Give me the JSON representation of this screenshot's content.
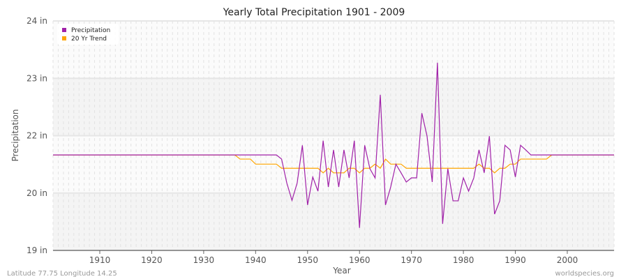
{
  "chart_data": {
    "type": "line",
    "title": "Yearly Total Precipitation 1901 - 2009",
    "xlabel": "Year",
    "ylabel": "Precipitation",
    "xlim": [
      1901,
      2009
    ],
    "ylim": [
      19,
      24
    ],
    "x_ticks": [
      1910,
      1920,
      1930,
      1940,
      1950,
      1960,
      1970,
      1980,
      1990,
      2000
    ],
    "y_ticks": [
      {
        "value": 19,
        "label": "19 in"
      },
      {
        "value": 20.25,
        "label": "20 in"
      },
      {
        "value": 21.5,
        "label": "22 in"
      },
      {
        "value": 22.75,
        "label": "23 in"
      },
      {
        "value": 24,
        "label": "24 in"
      }
    ],
    "grid": true,
    "legend_position": "top-left",
    "series": [
      {
        "name": "Precipitation",
        "color": "#a020a8",
        "start_year": 1901,
        "values": [
          21.08,
          21.08,
          21.08,
          21.08,
          21.08,
          21.08,
          21.08,
          21.08,
          21.08,
          21.08,
          21.08,
          21.08,
          21.08,
          21.08,
          21.08,
          21.08,
          21.08,
          21.08,
          21.08,
          21.08,
          21.08,
          21.08,
          21.08,
          21.08,
          21.08,
          21.08,
          21.08,
          21.08,
          21.08,
          21.08,
          21.08,
          21.08,
          21.08,
          21.08,
          21.08,
          21.08,
          21.08,
          21.08,
          21.08,
          21.08,
          21.08,
          21.08,
          21.08,
          21.08,
          20.99,
          20.47,
          20.09,
          20.47,
          21.29,
          19.99,
          20.6,
          20.29,
          21.39,
          20.38,
          21.19,
          20.38,
          21.19,
          20.58,
          21.39,
          19.49,
          21.29,
          20.78,
          20.58,
          22.39,
          19.99,
          20.38,
          20.88,
          20.69,
          20.49,
          20.58,
          20.58,
          21.99,
          21.49,
          20.49,
          23.09,
          19.58,
          20.78,
          20.08,
          20.08,
          20.58,
          20.29,
          20.58,
          21.19,
          20.69,
          21.49,
          19.79,
          20.08,
          21.29,
          21.19,
          20.6,
          21.29,
          21.19,
          21.08,
          21.08,
          21.08,
          21.08,
          21.08,
          21.08,
          21.08,
          21.08,
          21.08,
          21.08,
          21.08,
          21.08,
          21.08,
          21.08,
          21.08,
          21.08,
          21.08
        ]
      },
      {
        "name": "20 Yr Trend",
        "color": "#ffa500",
        "start_year": 1901,
        "values": [
          21.08,
          21.08,
          21.08,
          21.08,
          21.08,
          21.08,
          21.08,
          21.08,
          21.08,
          21.08,
          21.08,
          21.08,
          21.08,
          21.08,
          21.08,
          21.08,
          21.08,
          21.08,
          21.08,
          21.08,
          21.08,
          21.08,
          21.08,
          21.08,
          21.08,
          21.08,
          21.08,
          21.08,
          21.08,
          21.08,
          21.08,
          21.08,
          21.08,
          21.08,
          21.08,
          21.08,
          20.99,
          20.99,
          20.99,
          20.88,
          20.88,
          20.88,
          20.88,
          20.88,
          20.79,
          20.79,
          20.79,
          20.79,
          20.79,
          20.79,
          20.79,
          20.79,
          20.69,
          20.79,
          20.69,
          20.69,
          20.69,
          20.79,
          20.79,
          20.69,
          20.79,
          20.79,
          20.88,
          20.79,
          20.99,
          20.88,
          20.88,
          20.88,
          20.79,
          20.79,
          20.79,
          20.79,
          20.79,
          20.79,
          20.79,
          20.79,
          20.79,
          20.79,
          20.79,
          20.79,
          20.79,
          20.79,
          20.88,
          20.79,
          20.79,
          20.69,
          20.79,
          20.79,
          20.88,
          20.88,
          20.99,
          20.99,
          20.99,
          20.99,
          20.99,
          20.99,
          21.08,
          21.08,
          21.08,
          21.08,
          21.08,
          21.08,
          21.08,
          21.08,
          21.08,
          21.08,
          21.08,
          21.08,
          21.08
        ]
      }
    ]
  },
  "footer": {
    "left": "Latitude 77.75 Longitude 14.25",
    "right": "worldspecies.org"
  }
}
